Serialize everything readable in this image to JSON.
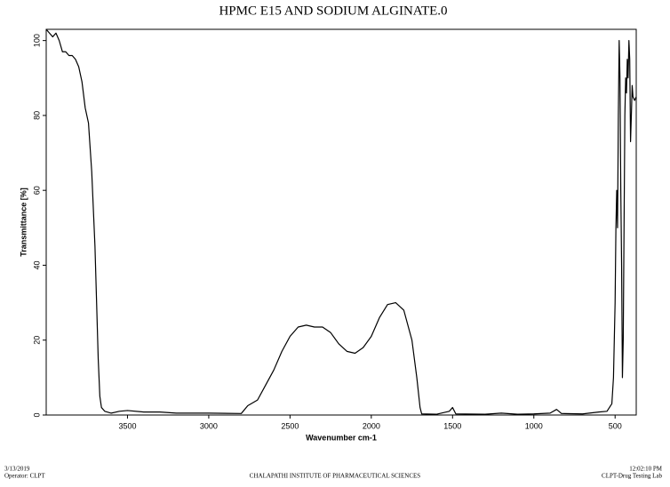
{
  "chart_data": {
    "type": "line",
    "title": "HPMC E15 AND SODIUM ALGINATE.0",
    "x_label": "Wavenumber cm-1",
    "y_label": "Transmittance [%]",
    "x": [
      4000,
      3980,
      3960,
      3940,
      3920,
      3900,
      3880,
      3860,
      3840,
      3820,
      3800,
      3780,
      3760,
      3740,
      3720,
      3700,
      3690,
      3680,
      3670,
      3660,
      3640,
      3600,
      3550,
      3500,
      3400,
      3300,
      3200,
      3000,
      2800,
      2760,
      2700,
      2650,
      2600,
      2550,
      2500,
      2450,
      2400,
      2350,
      2300,
      2250,
      2200,
      2150,
      2100,
      2050,
      2000,
      1950,
      1900,
      1850,
      1800,
      1750,
      1720,
      1700,
      1690,
      1600,
      1520,
      1500,
      1480,
      1300,
      1200,
      1100,
      1000,
      900,
      860,
      830,
      700,
      600,
      550,
      520,
      510,
      500,
      495,
      490,
      485,
      480,
      475,
      470,
      465,
      460,
      455,
      450,
      445,
      440,
      435,
      430,
      425,
      420,
      415,
      410,
      405,
      400,
      395,
      390,
      380,
      370
    ],
    "series": [
      {
        "name": "Transmittance",
        "color": "#000000",
        "values": [
          103,
          102,
          101,
          102,
          100,
          97,
          97,
          96,
          96,
          95,
          93,
          89,
          82,
          78,
          65,
          45,
          30,
          15,
          5,
          2,
          1,
          0.5,
          1,
          1.2,
          0.8,
          0.8,
          0.5,
          0.5,
          0.4,
          2.5,
          4,
          8,
          12,
          17,
          21,
          23.5,
          24,
          23.5,
          23.5,
          22,
          19,
          17,
          16.5,
          18,
          21,
          26,
          29.5,
          30,
          28,
          20,
          10,
          2,
          0.3,
          0.2,
          1,
          2,
          0.3,
          0.2,
          0.5,
          0.2,
          0.3,
          0.5,
          1.5,
          0.4,
          0.3,
          0.8,
          1,
          3,
          10,
          30,
          50,
          60,
          50,
          80,
          100,
          90,
          60,
          40,
          10,
          20,
          50,
          80,
          90,
          86,
          95,
          90,
          100,
          95,
          73,
          80,
          88,
          85,
          84,
          85
        ]
      }
    ],
    "xlim": [
      4000,
      370
    ],
    "ylim": [
      0,
      103
    ],
    "xticks": [
      3500,
      3000,
      2500,
      2000,
      1500,
      1000,
      500
    ],
    "yticks": [
      0,
      20,
      40,
      60,
      80,
      100
    ]
  },
  "footer": {
    "date": "3/13/2019",
    "operator": "Operator: CLPT",
    "institute": "CHALAPATHI INSTITUTE OF PHARMACEUTICAL SCIENCES",
    "time": "12:02:10 PM",
    "lab": "CLPT-Drug Testing Lab"
  }
}
